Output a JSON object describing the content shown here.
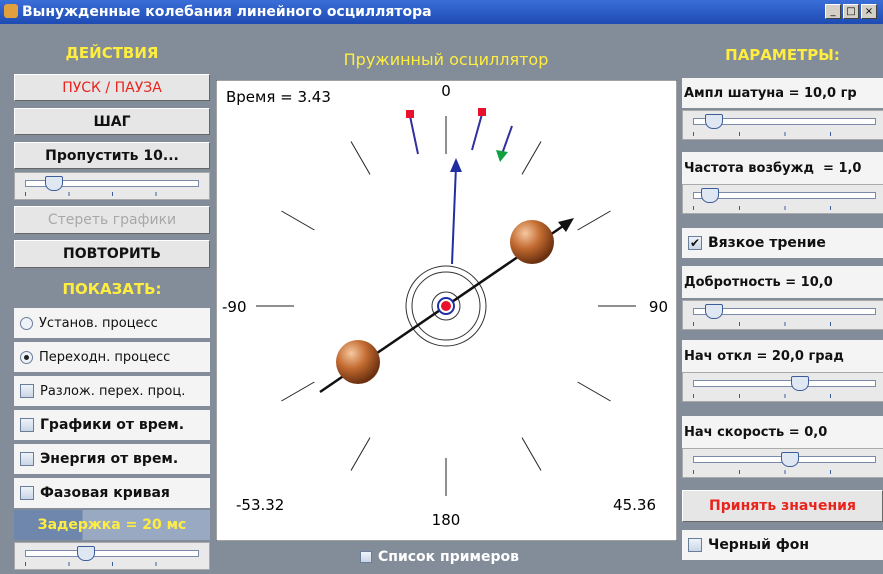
{
  "window": {
    "title": "Вынужденные колебания линейного осциллятора"
  },
  "left": {
    "actions_header": "ДЕЙСТВИЯ",
    "buttons": [
      "ПУСК / ПАУЗА",
      "ШАГ",
      "Пропустить 10...",
      "Стереть графики",
      "ПОВТОРИТЬ"
    ],
    "show_header": "ПОКАЗАТЬ:",
    "radios": [
      "Установ. процесс",
      "Переходн. процесс"
    ],
    "checkboxes": [
      "Разлож. перех. проц.",
      "Графики от врем.",
      "Энергия от врем.",
      "Фазовая кривая"
    ],
    "delay": "Задержка = 20 мс"
  },
  "center": {
    "title": "Пружинный осциллятор",
    "time": "Время = 3.43",
    "dial": {
      "top": "0",
      "left": "-90",
      "right": "90",
      "bottom": "180"
    },
    "corner_left": "-53.32",
    "corner_right": "45.36",
    "examples": "Список примеров"
  },
  "right": {
    "header": "ПАРАМЕТРЫ:",
    "params": [
      "Ампл шатуна = 10,0 гр",
      "Частота возбужд  = 1,0"
    ],
    "viscous": "Вязкое трение",
    "params2": [
      "Добротность = 10,0",
      "Нач откл = 20,0 град",
      "Нач скорость = 0,0"
    ],
    "apply": "Принять значения",
    "black_bg": "Черный фон"
  }
}
